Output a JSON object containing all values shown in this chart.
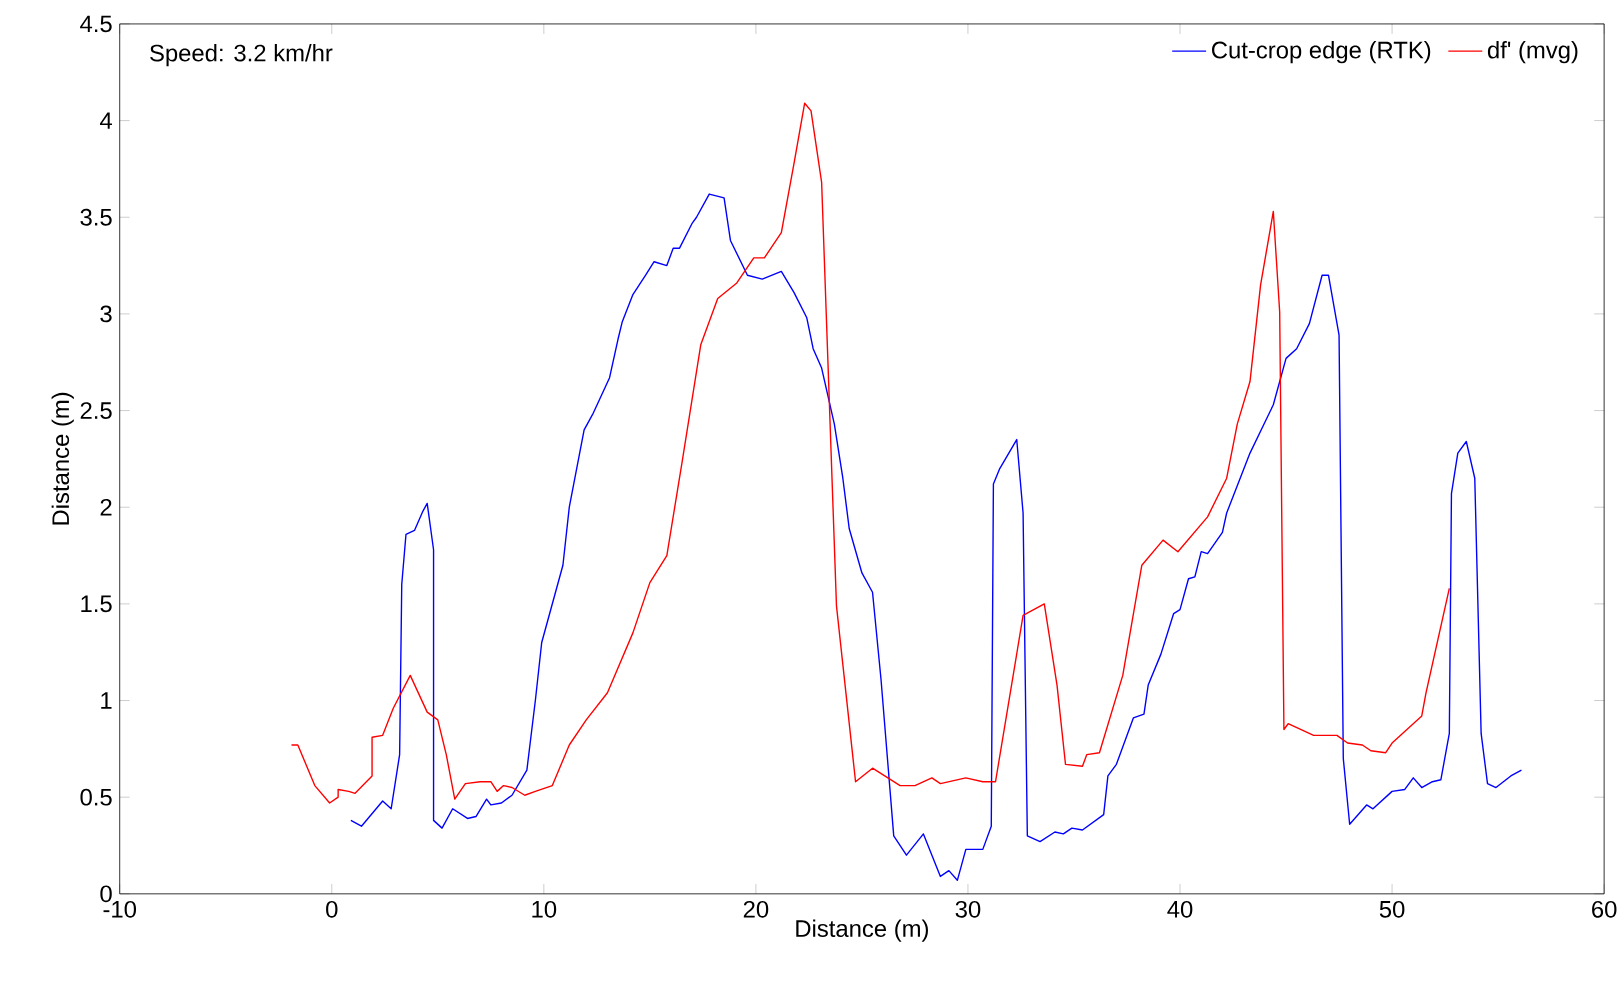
{
  "chart_data": {
    "type": "line",
    "xlabel": "Distance (m)",
    "ylabel": "Distance (m)",
    "annotations": [
      "Speed: 3.2 km/hr"
    ],
    "xlim": [
      -10,
      60
    ],
    "xticks": [
      -10,
      0,
      10,
      20,
      30,
      40,
      50,
      60
    ],
    "ylim": [
      0,
      4.5
    ],
    "yticks": [
      0,
      0.5,
      1,
      1.5,
      2,
      2.5,
      3,
      3.5,
      4,
      4.5
    ],
    "grid": false,
    "legend": "top right",
    "marker": "none",
    "line_style": "solid",
    "series": [
      {
        "name": "Cut-crop edge (RTK)",
        "color": "#0000ff",
        "x": [
          0.9,
          1.4,
          2.4,
          2.8,
          3.2,
          3.3,
          3.5,
          3.9,
          4.3,
          4.5,
          4.8,
          4.8,
          5.2,
          5.7,
          6.4,
          6.8,
          7.3,
          7.5,
          8.0,
          8.5,
          9.2,
          9.6,
          9.9,
          10.9,
          11.2,
          11.9,
          12.3,
          13.1,
          13.5,
          13.7,
          14.2,
          14.8,
          15.2,
          15.8,
          16.1,
          16.4,
          17.0,
          17.2,
          17.8,
          18.5,
          18.8,
          19.6,
          20.3,
          21.2,
          21.8,
          22.4,
          22.7,
          23.1,
          23.7,
          24.1,
          24.4,
          25.0,
          25.5,
          25.9,
          26.5,
          27.1,
          27.9,
          28.7,
          29.1,
          29.5,
          29.9,
          30.7,
          31.1,
          31.2,
          31.5,
          32.3,
          32.6,
          32.8,
          33.4,
          34.1,
          34.5,
          34.9,
          35.4,
          36.4,
          36.6,
          37.0,
          37.8,
          38.3,
          38.5,
          39.1,
          39.7,
          40.0,
          40.4,
          40.7,
          41.0,
          41.3,
          42.0,
          42.2,
          43.3,
          44.4,
          45.0,
          45.5,
          46.1,
          46.7,
          47.0,
          47.5,
          47.7,
          48.0,
          48.8,
          49.1,
          50.0,
          50.6,
          51.0,
          51.4,
          51.9,
          52.3,
          52.7,
          52.8,
          53.1,
          53.5,
          53.9,
          54.2,
          54.5,
          54.9,
          55.6,
          56.1
        ],
        "values": [
          0.38,
          0.35,
          0.48,
          0.44,
          0.72,
          1.6,
          1.86,
          1.88,
          1.98,
          2.02,
          1.78,
          0.38,
          0.34,
          0.44,
          0.39,
          0.4,
          0.49,
          0.46,
          0.47,
          0.51,
          0.64,
          1.0,
          1.3,
          1.7,
          2.0,
          2.4,
          2.48,
          2.67,
          2.87,
          2.96,
          3.1,
          3.2,
          3.27,
          3.25,
          3.34,
          3.34,
          3.47,
          3.5,
          3.62,
          3.6,
          3.38,
          3.2,
          3.18,
          3.22,
          3.11,
          2.98,
          2.82,
          2.72,
          2.43,
          2.15,
          1.89,
          1.66,
          1.56,
          1.11,
          0.3,
          0.2,
          0.31,
          0.09,
          0.12,
          0.07,
          0.23,
          0.23,
          0.35,
          2.12,
          2.2,
          2.35,
          1.97,
          0.3,
          0.27,
          0.32,
          0.31,
          0.34,
          0.33,
          0.41,
          0.61,
          0.67,
          0.91,
          0.93,
          1.08,
          1.24,
          1.45,
          1.47,
          1.63,
          1.64,
          1.77,
          1.76,
          1.87,
          1.97,
          2.28,
          2.53,
          2.77,
          2.82,
          2.95,
          3.2,
          3.2,
          2.89,
          0.7,
          0.36,
          0.46,
          0.44,
          0.53,
          0.54,
          0.6,
          0.55,
          0.58,
          0.59,
          0.83,
          2.07,
          2.28,
          2.34,
          2.15,
          0.83,
          0.57,
          0.55,
          0.61,
          0.64
        ]
      },
      {
        "name": "df' (mvg)",
        "color": "#ff0000",
        "x": [
          -1.9,
          -1.6,
          -0.8,
          -0.1,
          0.3,
          0.3,
          0.8,
          1.1,
          1.9,
          1.9,
          2.4,
          2.9,
          3.7,
          4.5,
          5.0,
          5.4,
          5.8,
          6.3,
          7.0,
          7.5,
          7.8,
          8.1,
          8.5,
          9.1,
          9.6,
          10.4,
          11.2,
          12.0,
          13.0,
          14.2,
          15.0,
          15.8,
          16.5,
          17.4,
          18.2,
          19.1,
          19.9,
          20.4,
          21.2,
          21.8,
          22.3,
          22.6,
          23.1,
          23.8,
          24.7,
          25.5,
          26.8,
          27.5,
          28.3,
          28.7,
          29.9,
          30.7,
          31.3,
          32.6,
          33.6,
          34.2,
          34.6,
          35.4,
          35.6,
          36.2,
          37.3,
          38.2,
          39.2,
          39.9,
          41.3,
          42.2,
          42.7,
          43.3,
          43.8,
          44.4,
          44.7,
          44.9,
          45.1,
          46.3,
          47.4,
          47.9,
          48.6,
          49.0,
          49.7,
          50.0,
          51.4,
          51.6,
          52.7
        ],
        "values": [
          0.77,
          0.77,
          0.56,
          0.47,
          0.5,
          0.54,
          0.53,
          0.52,
          0.61,
          0.81,
          0.82,
          0.96,
          1.13,
          0.94,
          0.9,
          0.72,
          0.49,
          0.57,
          0.58,
          0.58,
          0.53,
          0.56,
          0.55,
          0.51,
          0.53,
          0.56,
          0.77,
          0.9,
          1.04,
          1.35,
          1.61,
          1.75,
          2.22,
          2.84,
          3.08,
          3.16,
          3.29,
          3.29,
          3.42,
          3.78,
          4.09,
          4.05,
          3.68,
          1.49,
          0.58,
          0.65,
          0.56,
          0.56,
          0.6,
          0.57,
          0.6,
          0.58,
          0.58,
          1.44,
          1.5,
          1.08,
          0.67,
          0.66,
          0.72,
          0.73,
          1.13,
          1.7,
          1.83,
          1.77,
          1.95,
          2.15,
          2.43,
          2.65,
          3.15,
          3.53,
          3.01,
          0.85,
          0.88,
          0.82,
          0.82,
          0.78,
          0.77,
          0.74,
          0.73,
          0.78,
          0.92,
          1.04,
          1.58
        ]
      }
    ]
  }
}
